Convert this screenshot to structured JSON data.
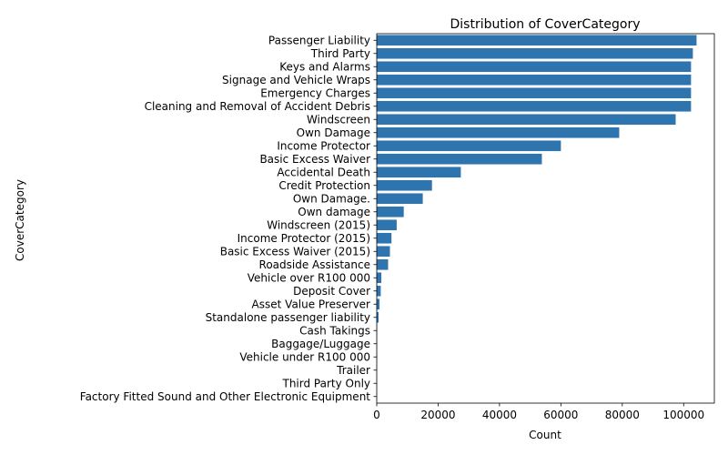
{
  "chart_data": {
    "type": "bar",
    "orientation": "horizontal",
    "title": "Distribution of CoverCategory",
    "xlabel": "Count",
    "ylabel": "CoverCategory",
    "xlim": [
      0,
      110000
    ],
    "xticks": [
      0,
      20000,
      40000,
      60000,
      80000,
      100000
    ],
    "grid": false,
    "bar_color": "#2e75b0",
    "categories": [
      "Passenger Liability",
      "Third Party",
      "Keys and Alarms",
      "Signage and Vehicle Wraps",
      "Emergency Charges",
      "Cleaning and Removal of Accident Debris",
      "Windscreen",
      "Own Damage ",
      "Income Protector",
      "Basic Excess Waiver",
      "Accidental Death",
      "Credit Protection",
      "Own Damage.",
      "Own damage",
      "Windscreen (2015)",
      "Income Protector (2015)",
      "Basic Excess Waiver (2015)",
      "Roadside Assistance",
      "Vehicle over R100 000",
      "Deposit Cover",
      "Asset Value Preserver",
      "Standalone passenger liability",
      "Cash Takings",
      "Baggage/Luggage",
      "Vehicle under R100 000",
      "Trailer",
      "Third Party Only",
      "Factory Fitted Sound and Other Electronic Equipment"
    ],
    "values": [
      104200,
      103000,
      102400,
      102400,
      102400,
      102400,
      97400,
      79000,
      60000,
      53800,
      27400,
      18000,
      15000,
      8800,
      6500,
      4800,
      4300,
      3700,
      1500,
      1300,
      900,
      600,
      100,
      80,
      60,
      40,
      20,
      10
    ]
  }
}
